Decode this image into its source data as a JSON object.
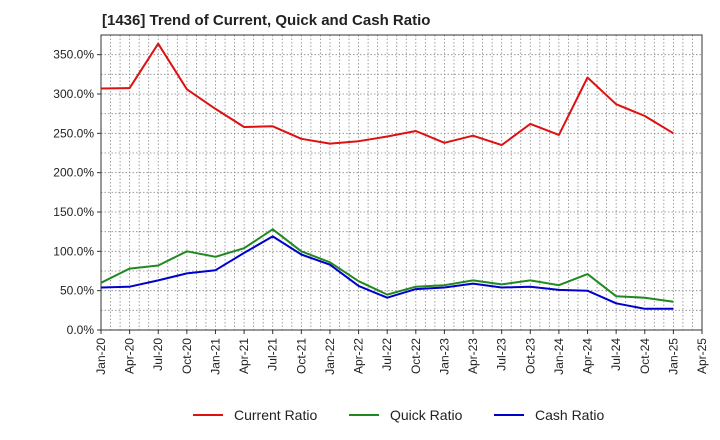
{
  "chart_data": {
    "type": "line",
    "title": "[1436]  Trend of Current, Quick and Cash Ratio",
    "xlabel": "",
    "ylabel": "",
    "ylim": [
      0,
      375
    ],
    "yticks": [
      0,
      50,
      100,
      150,
      200,
      250,
      300,
      350
    ],
    "ytick_labels": [
      "0.0%",
      "50.0%",
      "100.0%",
      "150.0%",
      "200.0%",
      "250.0%",
      "300.0%",
      "350.0%"
    ],
    "xtick_labels": [
      "Jan-20",
      "Apr-20",
      "Jul-20",
      "Oct-20",
      "Jan-21",
      "Apr-21",
      "Jul-21",
      "Oct-21",
      "Jan-22",
      "Apr-22",
      "Jul-22",
      "Oct-22",
      "Jan-23",
      "Apr-23",
      "Jul-23",
      "Oct-23",
      "Jan-24",
      "Apr-24",
      "Jul-24",
      "Oct-24",
      "Jan-25",
      "Apr-25"
    ],
    "grid": true,
    "legend_position": "bottom",
    "series": [
      {
        "name": "Current Ratio",
        "color": "#dd1111",
        "values": [
          307,
          307.5,
          364,
          306,
          281,
          258,
          259,
          243,
          237,
          240,
          246,
          253,
          238,
          247,
          235,
          262,
          248,
          321,
          287,
          272,
          250
        ]
      },
      {
        "name": "Quick Ratio",
        "color": "#228822",
        "values": [
          60,
          78,
          82,
          100,
          93,
          104,
          128,
          100,
          86,
          62,
          45,
          55,
          57,
          63,
          58,
          63,
          57,
          71,
          43,
          41,
          36
        ]
      },
      {
        "name": "Cash Ratio",
        "color": "#0000cc",
        "values": [
          54,
          55,
          63,
          72,
          76,
          98,
          119,
          96,
          83,
          56,
          41,
          52,
          54,
          59,
          54,
          55,
          51,
          50,
          34,
          27,
          27
        ]
      }
    ]
  }
}
